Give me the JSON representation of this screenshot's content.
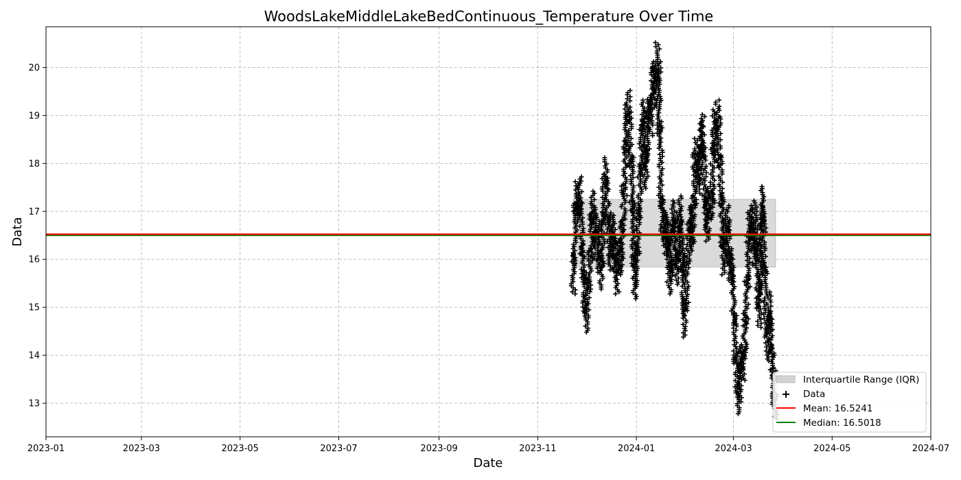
{
  "chart_data": {
    "type": "scatter",
    "title": "WoodsLakeMiddleLakeBedContinuous_Temperature Over Time",
    "xlabel": "Date",
    "ylabel": "Data",
    "xlim": [
      "2023-01-01",
      "2024-07-01"
    ],
    "ylim": [
      12.3,
      20.85
    ],
    "x_ticks": [
      "2023-01",
      "2023-03",
      "2023-05",
      "2023-07",
      "2023-09",
      "2023-11",
      "2024-01",
      "2024-03",
      "2024-05",
      "2024-07"
    ],
    "y_ticks": [
      13,
      14,
      15,
      16,
      17,
      18,
      19,
      20
    ],
    "grid": true,
    "legend_position": "lower-right",
    "colors": {
      "data": "#000000",
      "mean": "#ff0000",
      "median": "#008000",
      "iqr": "#d3d3d3"
    },
    "iqr": {
      "label": "Interquartile Range (IQR)",
      "low": 15.84,
      "high": 17.25,
      "start": "2023-11-23",
      "end": "2024-03-27"
    },
    "mean": {
      "label": "Mean: 16.5241",
      "value": 16.5241
    },
    "median": {
      "label": "Median: 16.5018",
      "value": 16.5018
    },
    "series": [
      {
        "name": "Data",
        "marker": "+",
        "points": [
          [
            "2023-11-23",
            15.4
          ],
          [
            "2023-11-24",
            16.6
          ],
          [
            "2023-11-25",
            17.5
          ],
          [
            "2023-11-26",
            16.9
          ],
          [
            "2023-11-27",
            17.6
          ],
          [
            "2023-11-28",
            16.5
          ],
          [
            "2023-11-29",
            15.9
          ],
          [
            "2023-11-30",
            15.4
          ],
          [
            "2023-12-01",
            14.6
          ],
          [
            "2023-12-02",
            15.2
          ],
          [
            "2023-12-03",
            15.8
          ],
          [
            "2023-12-04",
            16.4
          ],
          [
            "2023-12-05",
            17.3
          ],
          [
            "2023-12-06",
            16.7
          ],
          [
            "2023-12-07",
            16.1
          ],
          [
            "2023-12-08",
            16.8
          ],
          [
            "2023-12-09",
            16.2
          ],
          [
            "2023-12-10",
            15.5
          ],
          [
            "2023-12-11",
            16.4
          ],
          [
            "2023-12-12",
            17.3
          ],
          [
            "2023-12-13",
            18.0
          ],
          [
            "2023-12-14",
            17.2
          ],
          [
            "2023-12-15",
            16.5
          ],
          [
            "2023-12-16",
            15.9
          ],
          [
            "2023-12-17",
            16.4
          ],
          [
            "2023-12-18",
            16.8
          ],
          [
            "2023-12-19",
            16.0
          ],
          [
            "2023-12-20",
            15.4
          ],
          [
            "2023-12-21",
            16.3
          ],
          [
            "2023-12-22",
            15.8
          ],
          [
            "2023-12-23",
            16.4
          ],
          [
            "2023-12-24",
            17.0
          ],
          [
            "2023-12-25",
            17.9
          ],
          [
            "2023-12-26",
            18.8
          ],
          [
            "2023-12-27",
            19.4
          ],
          [
            "2023-12-28",
            18.5
          ],
          [
            "2023-12-29",
            17.6
          ],
          [
            "2023-12-30",
            16.6
          ],
          [
            "2023-12-31",
            15.3
          ],
          [
            "2024-01-01",
            15.8
          ],
          [
            "2024-01-02",
            16.6
          ],
          [
            "2024-01-03",
            17.3
          ],
          [
            "2024-01-04",
            18.4
          ],
          [
            "2024-01-05",
            19.2
          ],
          [
            "2024-01-06",
            18.4
          ],
          [
            "2024-01-07",
            17.6
          ],
          [
            "2024-01-08",
            18.9
          ],
          [
            "2024-01-09",
            19.3
          ],
          [
            "2024-01-10",
            18.7
          ],
          [
            "2024-01-11",
            19.8
          ],
          [
            "2024-01-12",
            20.0
          ],
          [
            "2024-01-13",
            19.3
          ],
          [
            "2024-01-14",
            20.4
          ],
          [
            "2024-01-15",
            19.6
          ],
          [
            "2024-01-16",
            17.9
          ],
          [
            "2024-01-17",
            16.5
          ],
          [
            "2024-01-18",
            16.9
          ],
          [
            "2024-01-19",
            16.2
          ],
          [
            "2024-01-20",
            16.8
          ],
          [
            "2024-01-21",
            15.9
          ],
          [
            "2024-01-22",
            15.4
          ],
          [
            "2024-01-23",
            16.3
          ],
          [
            "2024-01-24",
            17.1
          ],
          [
            "2024-01-25",
            16.3
          ],
          [
            "2024-01-26",
            15.6
          ],
          [
            "2024-01-27",
            16.6
          ],
          [
            "2024-01-28",
            17.2
          ],
          [
            "2024-01-29",
            16.2
          ],
          [
            "2024-01-30",
            15.4
          ],
          [
            "2024-01-31",
            14.5
          ],
          [
            "2024-02-01",
            15.6
          ],
          [
            "2024-02-02",
            16.4
          ],
          [
            "2024-02-03",
            17.0
          ],
          [
            "2024-02-04",
            16.3
          ],
          [
            "2024-02-05",
            16.6
          ],
          [
            "2024-02-06",
            17.8
          ],
          [
            "2024-02-07",
            18.4
          ],
          [
            "2024-02-08",
            17.5
          ],
          [
            "2024-02-09",
            17.9
          ],
          [
            "2024-02-10",
            18.6
          ],
          [
            "2024-02-11",
            18.9
          ],
          [
            "2024-02-12",
            17.6
          ],
          [
            "2024-02-13",
            16.8
          ],
          [
            "2024-02-14",
            16.5
          ],
          [
            "2024-02-15",
            17.4
          ],
          [
            "2024-02-16",
            17.0
          ],
          [
            "2024-02-17",
            17.6
          ],
          [
            "2024-02-18",
            19.0
          ],
          [
            "2024-02-19",
            18.3
          ],
          [
            "2024-02-20",
            19.2
          ],
          [
            "2024-02-21",
            18.5
          ],
          [
            "2024-02-22",
            17.6
          ],
          [
            "2024-02-23",
            16.9
          ],
          [
            "2024-02-24",
            15.8
          ],
          [
            "2024-02-25",
            16.4
          ],
          [
            "2024-02-26",
            17.0
          ],
          [
            "2024-02-27",
            16.4
          ],
          [
            "2024-02-28",
            15.6
          ],
          [
            "2024-02-29",
            16.1
          ],
          [
            "2024-03-01",
            15.2
          ],
          [
            "2024-03-02",
            14.3
          ],
          [
            "2024-03-03",
            13.6
          ],
          [
            "2024-03-04",
            12.9
          ],
          [
            "2024-03-05",
            13.4
          ],
          [
            "2024-03-06",
            14.1
          ],
          [
            "2024-03-07",
            13.6
          ],
          [
            "2024-03-08",
            14.5
          ],
          [
            "2024-03-09",
            15.0
          ],
          [
            "2024-03-10",
            16.1
          ],
          [
            "2024-03-11",
            16.8
          ],
          [
            "2024-03-12",
            17.0
          ],
          [
            "2024-03-13",
            16.5
          ],
          [
            "2024-03-14",
            16.0
          ],
          [
            "2024-03-15",
            17.1
          ],
          [
            "2024-03-16",
            15.5
          ],
          [
            "2024-03-17",
            14.7
          ],
          [
            "2024-03-18",
            16.1
          ],
          [
            "2024-03-19",
            17.4
          ],
          [
            "2024-03-20",
            16.6
          ],
          [
            "2024-03-21",
            15.0
          ],
          [
            "2024-03-22",
            14.0
          ],
          [
            "2024-03-23",
            15.2
          ],
          [
            "2024-03-24",
            14.4
          ],
          [
            "2024-03-25",
            13.8
          ],
          [
            "2024-03-26",
            13.4
          ],
          [
            "2024-03-27",
            12.8
          ]
        ]
      }
    ]
  }
}
